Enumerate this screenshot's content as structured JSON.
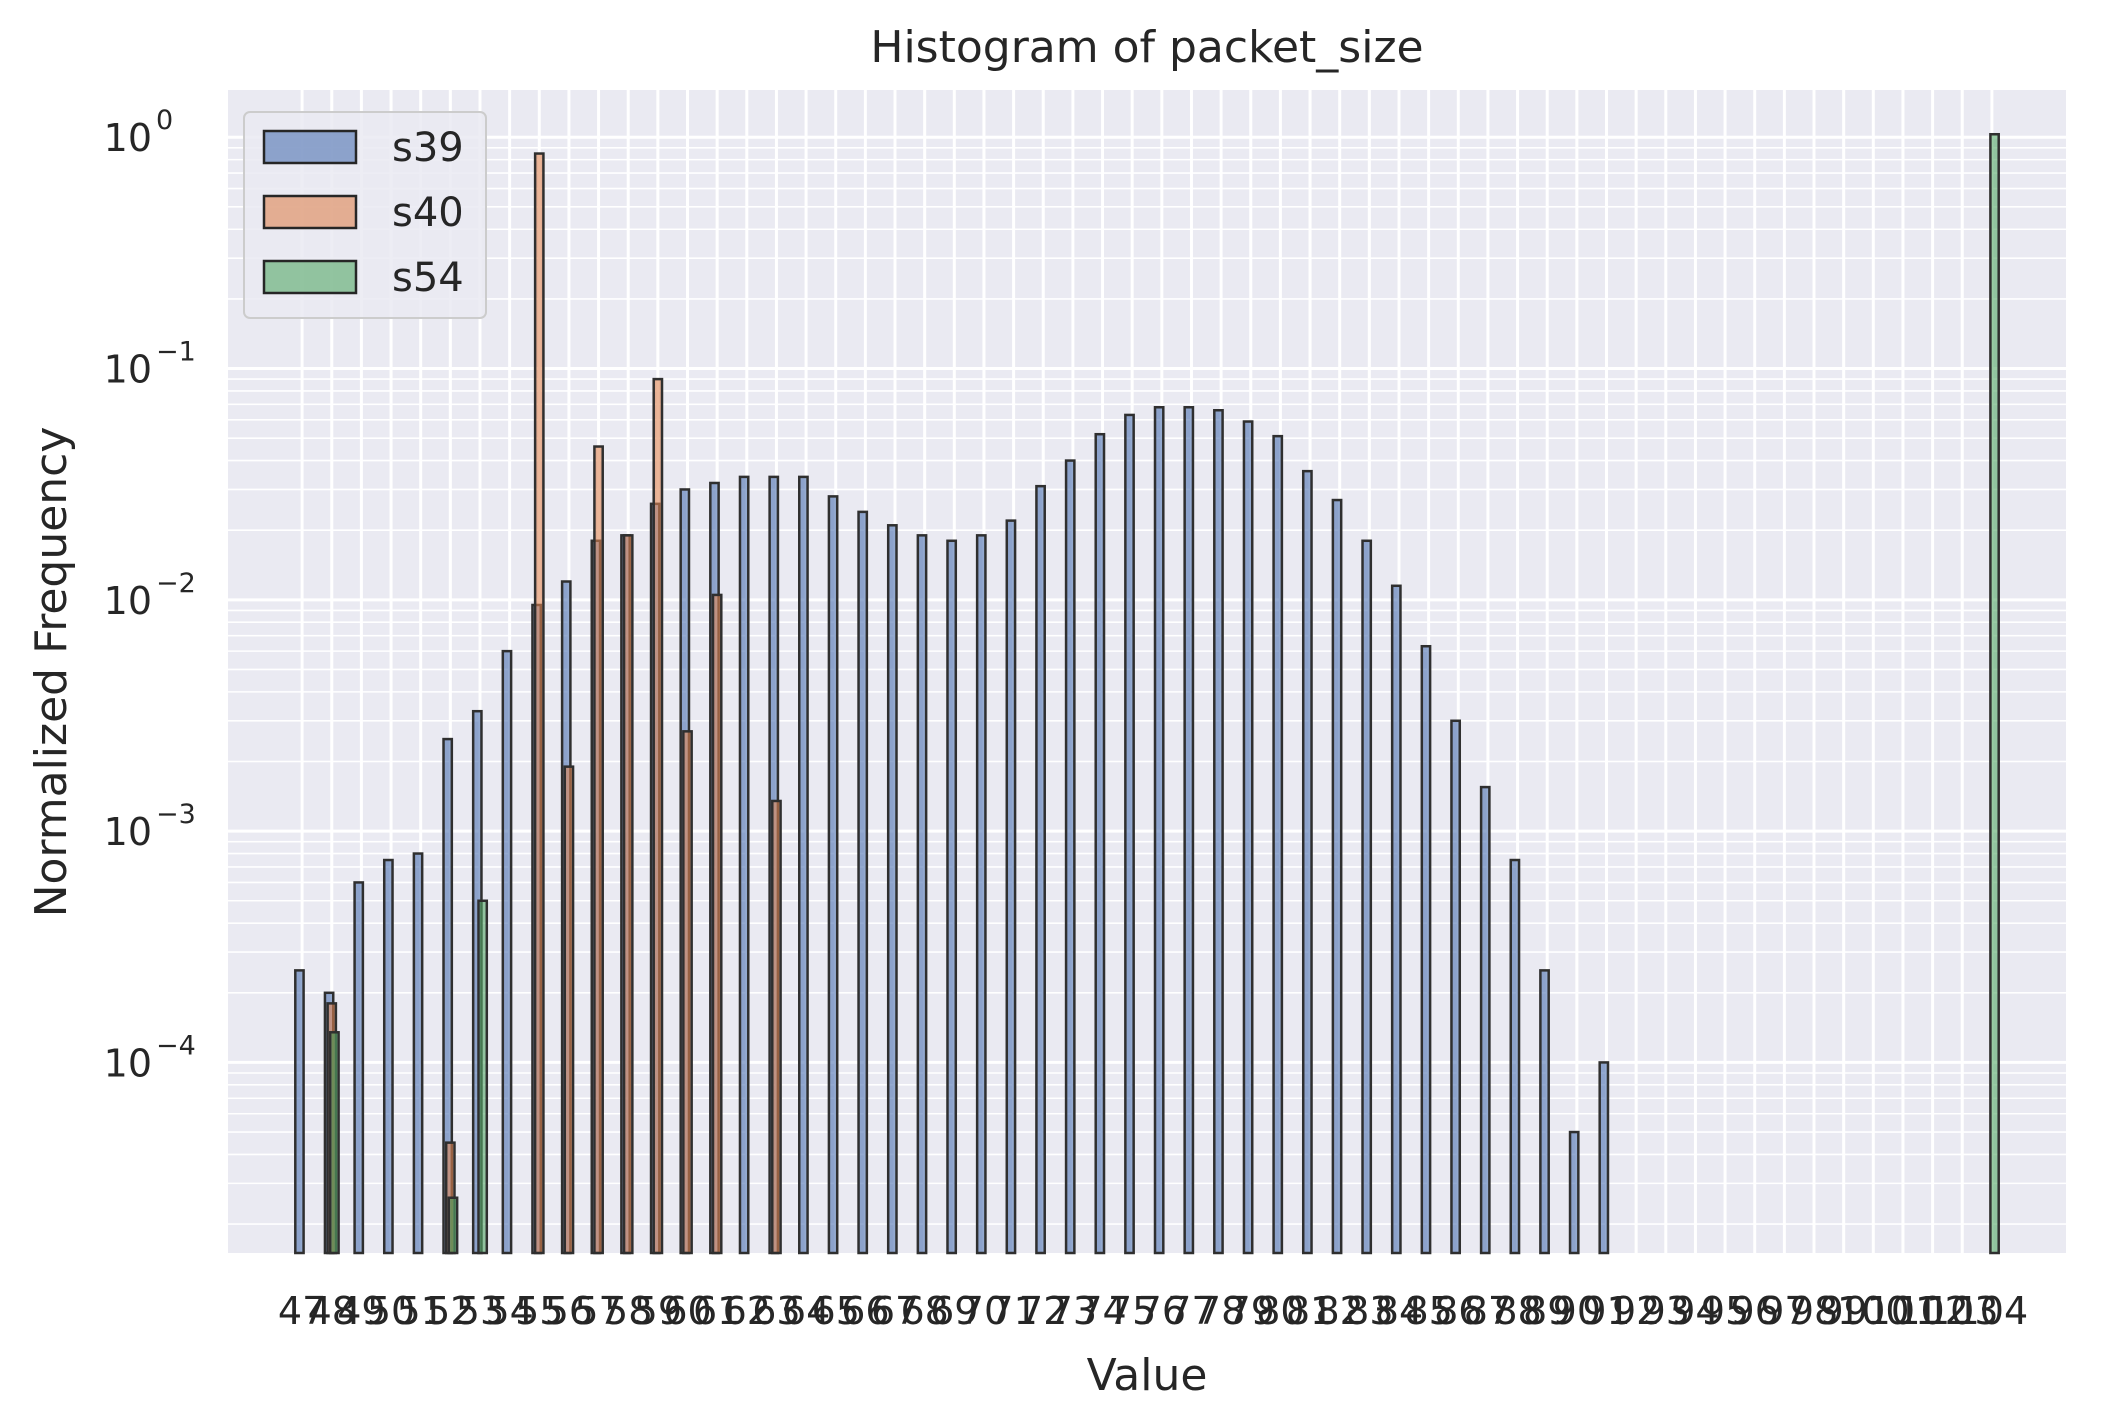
{
  "chart_data": {
    "type": "bar",
    "title": "Histogram of packet_size",
    "xlabel": "Value",
    "ylabel": "Normalized Frequency",
    "y_scale": "log",
    "ylim": [
      1.5e-05,
      1.6
    ],
    "xlim": [
      44.5,
      106.5
    ],
    "grid": true,
    "legend_position": "top-left",
    "bar_width": 0.28,
    "x_ticks": [
      "47",
      "48",
      "49",
      "50",
      "51",
      "52",
      "53",
      "54",
      "55",
      "56",
      "57",
      "58",
      "59",
      "60",
      "61",
      "62",
      "63",
      "64",
      "65",
      "66",
      "67",
      "68",
      "69",
      "70",
      "71",
      "72",
      "73",
      "74",
      "75",
      "76",
      "77",
      "78",
      "79",
      "80",
      "81",
      "82",
      "83",
      "84",
      "85",
      "86",
      "87",
      "88",
      "89",
      "90",
      "91",
      "92",
      "93",
      "94",
      "95",
      "96",
      "97",
      "98",
      "99",
      "100",
      "101",
      "102",
      "103",
      "104"
    ],
    "y_ticks": [
      {
        "value": 0.0001,
        "base": "10",
        "exp": "−4"
      },
      {
        "value": 0.001,
        "base": "10",
        "exp": "−3"
      },
      {
        "value": 0.01,
        "base": "10",
        "exp": "−2"
      },
      {
        "value": 0.1,
        "base": "10",
        "exp": "−1"
      },
      {
        "value": 1,
        "base": "10",
        "exp": "0"
      }
    ],
    "series": [
      {
        "name": "s39",
        "color": "#4c72b0",
        "x": [
          47,
          48,
          49,
          50,
          51,
          52,
          53,
          54,
          55,
          56,
          57,
          58,
          59,
          60,
          61,
          62,
          63,
          64,
          65,
          66,
          67,
          68,
          69,
          70,
          71,
          72,
          73,
          74,
          75,
          76,
          77,
          78,
          79,
          80,
          81,
          82,
          83,
          84,
          85,
          86,
          87,
          88,
          89,
          90,
          91
        ],
        "values": [
          0.00025,
          0.0002,
          0.0006,
          0.00075,
          0.0008,
          0.0025,
          0.0033,
          0.006,
          0.0095,
          0.012,
          0.018,
          0.019,
          0.026,
          0.03,
          0.032,
          0.034,
          0.034,
          0.034,
          0.028,
          0.024,
          0.021,
          0.019,
          0.018,
          0.019,
          0.022,
          0.031,
          0.04,
          0.052,
          0.063,
          0.068,
          0.068,
          0.066,
          0.059,
          0.051,
          0.036,
          0.027,
          0.018,
          0.0115,
          0.0063,
          0.003,
          0.00155,
          0.00075,
          0.00025,
          5e-05,
          0.0001
        ]
      },
      {
        "name": "s40",
        "color": "#dd8452",
        "x": [
          48,
          52,
          55,
          56,
          57,
          58,
          59,
          60,
          61,
          63
        ],
        "values": [
          0.00018,
          4.5e-05,
          0.85,
          0.0019,
          0.046,
          0.019,
          0.09,
          0.0027,
          0.0105,
          0.00135
        ]
      },
      {
        "name": "s54",
        "color": "#55a868",
        "x": [
          48,
          52,
          53,
          104
        ],
        "values": [
          0.000135,
          2.6e-05,
          0.0005,
          1.03
        ]
      }
    ]
  }
}
